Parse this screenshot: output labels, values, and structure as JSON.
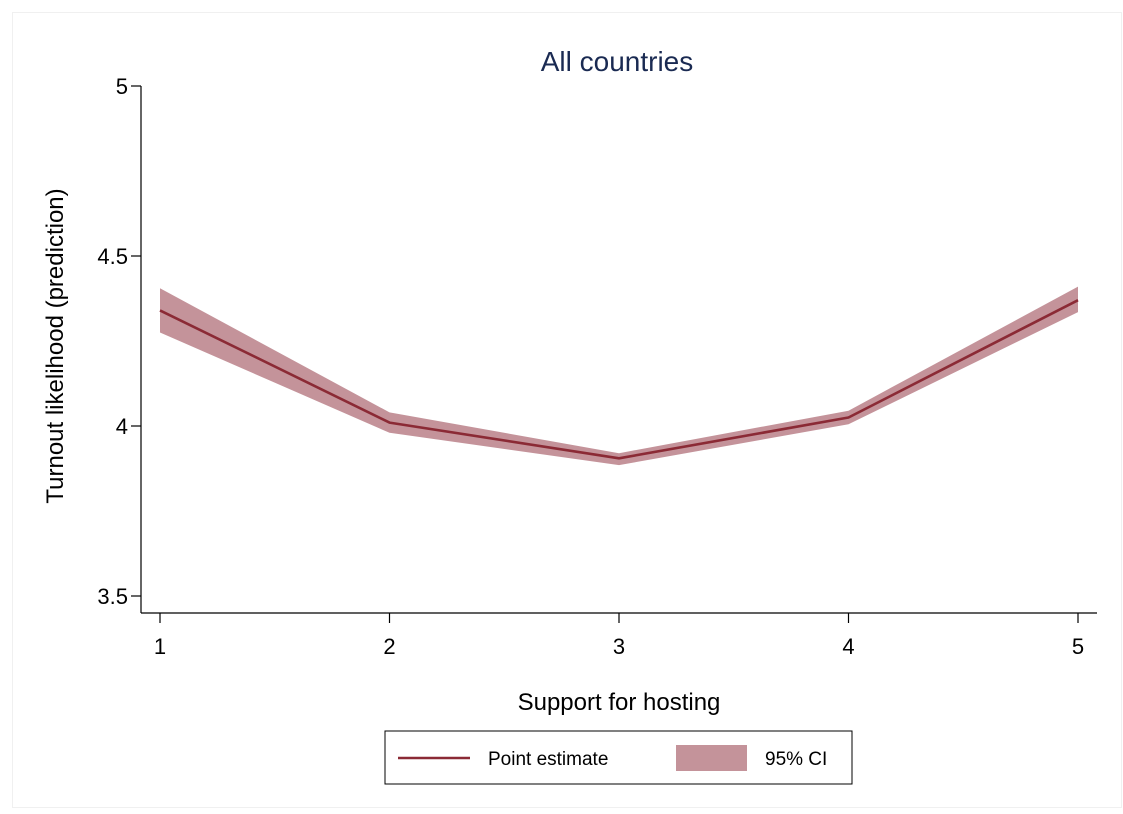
{
  "chart_data": {
    "type": "line",
    "title": "All countries",
    "xlabel": "Support for hosting",
    "ylabel": "Turnout likelihood (prediction)",
    "x": [
      1,
      2,
      3,
      4,
      5
    ],
    "xticks": [
      "1",
      "2",
      "3",
      "4",
      "5"
    ],
    "yticks": [
      "3.5",
      "4",
      "4.5",
      "5"
    ],
    "ytick_values": [
      3.5,
      4,
      4.5,
      5
    ],
    "xlim": [
      1,
      5
    ],
    "ylim": [
      3.45,
      5.0
    ],
    "grid": false,
    "legend_position": "bottom",
    "series": [
      {
        "name": "Point estimate",
        "type": "line",
        "values": [
          4.34,
          4.01,
          3.905,
          4.025,
          4.37
        ],
        "color": "#8b2a35"
      },
      {
        "name": "95% CI",
        "type": "area",
        "lower": [
          4.275,
          3.98,
          3.885,
          4.005,
          4.335
        ],
        "upper": [
          4.405,
          4.04,
          3.92,
          4.045,
          4.41
        ],
        "color": "#c4939a"
      }
    ]
  }
}
